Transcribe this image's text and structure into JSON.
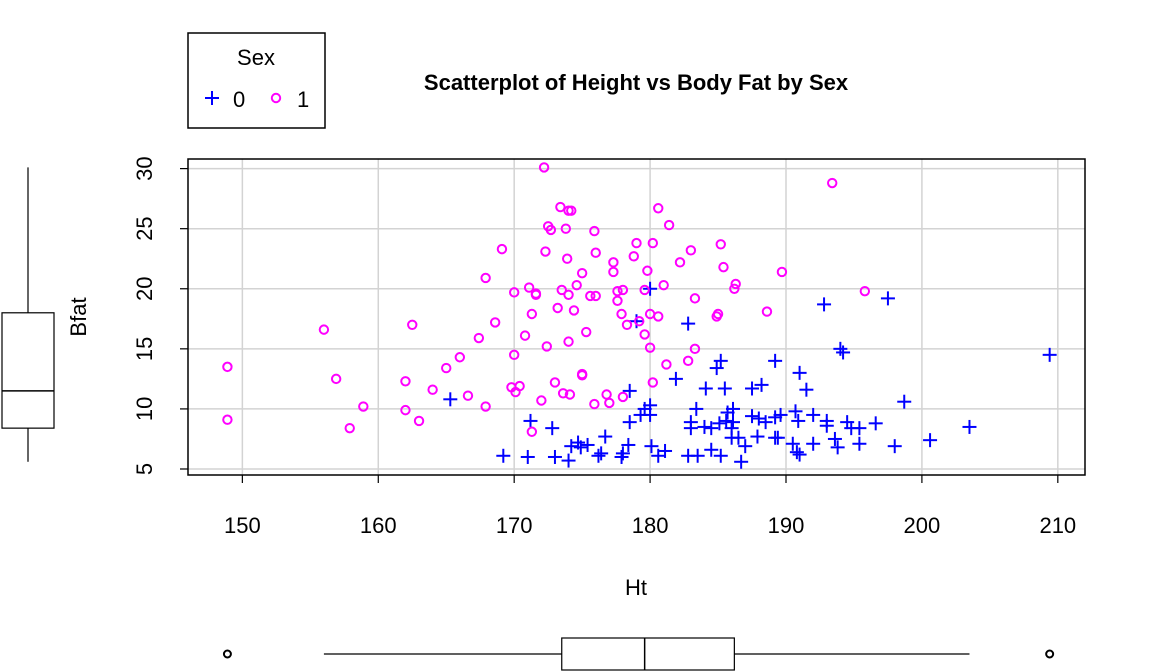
{
  "chart_data": {
    "type": "scatter",
    "title": "Scatterplot of Height vs Body Fat by Sex",
    "xlabel": "Ht",
    "ylabel": "Bfat",
    "xlim": [
      146,
      212
    ],
    "ylim": [
      4.5,
      30.8
    ],
    "x_ticks": [
      150,
      160,
      170,
      180,
      190,
      200,
      210
    ],
    "y_ticks": [
      5,
      10,
      15,
      20,
      25,
      30
    ],
    "grid": true,
    "legend": {
      "title": "Sex",
      "position": "top-left, outside plot"
    },
    "colors": {
      "0": "#0000ff",
      "1": "#ff00ff",
      "grid": "#d3d3d3"
    },
    "series": [
      {
        "name": "0",
        "marker": "plus",
        "points": [
          [
            165.3,
            10.8
          ],
          [
            169.2,
            6.1
          ],
          [
            171.2,
            9.0
          ],
          [
            171.0,
            6.0
          ],
          [
            172.8,
            8.4
          ],
          [
            173.0,
            6.0
          ],
          [
            174.0,
            5.7
          ],
          [
            174.2,
            6.9
          ],
          [
            174.7,
            7.2
          ],
          [
            174.9,
            6.8
          ],
          [
            175.4,
            7.0
          ],
          [
            176.2,
            6.1
          ],
          [
            176.4,
            6.3
          ],
          [
            176.7,
            7.7
          ],
          [
            177.9,
            6.0
          ],
          [
            178.0,
            6.3
          ],
          [
            178.4,
            7.0
          ],
          [
            178.5,
            8.9
          ],
          [
            178.5,
            11.5
          ],
          [
            179.0,
            17.3
          ],
          [
            179.3,
            9.5
          ],
          [
            179.6,
            10.0
          ],
          [
            180.0,
            9.5
          ],
          [
            180.0,
            10.3
          ],
          [
            180.0,
            20.0
          ],
          [
            180.6,
            6.1
          ],
          [
            181.1,
            6.5
          ],
          [
            180.1,
            6.9
          ],
          [
            181.9,
            12.5
          ],
          [
            182.8,
            17.1
          ],
          [
            182.8,
            6.1
          ],
          [
            183.0,
            8.9
          ],
          [
            183.5,
            6.1
          ],
          [
            183.0,
            8.4
          ],
          [
            183.4,
            10.0
          ],
          [
            184.1,
            11.7
          ],
          [
            184.0,
            8.5
          ],
          [
            184.5,
            8.4
          ],
          [
            184.5,
            6.6
          ],
          [
            184.9,
            13.4
          ],
          [
            185.2,
            14.0
          ],
          [
            185.1,
            8.8
          ],
          [
            185.2,
            6.1
          ],
          [
            185.6,
            9.0
          ],
          [
            185.5,
            11.7
          ],
          [
            185.7,
            9.7
          ],
          [
            186.0,
            8.4
          ],
          [
            186.0,
            7.6
          ],
          [
            186.1,
            10.0
          ],
          [
            186.1,
            8.9
          ],
          [
            186.5,
            7.6
          ],
          [
            186.7,
            5.6
          ],
          [
            187.0,
            6.9
          ],
          [
            187.5,
            11.7
          ],
          [
            187.5,
            9.4
          ],
          [
            187.9,
            7.7
          ],
          [
            188.0,
            9.2
          ],
          [
            188.2,
            12.0
          ],
          [
            188.5,
            8.9
          ],
          [
            189.2,
            9.3
          ],
          [
            189.4,
            7.6
          ],
          [
            189.2,
            14.0
          ],
          [
            189.6,
            9.5
          ],
          [
            189.2,
            7.6
          ],
          [
            190.5,
            7.1
          ],
          [
            190.7,
            9.8
          ],
          [
            190.8,
            6.4
          ],
          [
            190.9,
            9.0
          ],
          [
            191.0,
            6.2
          ],
          [
            191.0,
            13.0
          ],
          [
            191.5,
            11.6
          ],
          [
            192.0,
            7.1
          ],
          [
            192.0,
            9.5
          ],
          [
            192.8,
            18.7
          ],
          [
            193.0,
            8.6
          ],
          [
            193.0,
            9.0
          ],
          [
            193.6,
            7.5
          ],
          [
            193.8,
            6.8
          ],
          [
            194.0,
            15.0
          ],
          [
            194.2,
            14.7
          ],
          [
            194.5,
            8.9
          ],
          [
            194.8,
            8.4
          ],
          [
            195.4,
            7.1
          ],
          [
            195.4,
            8.4
          ],
          [
            196.6,
            8.8
          ],
          [
            197.5,
            19.2
          ],
          [
            198.0,
            6.9
          ],
          [
            198.7,
            10.6
          ],
          [
            200.6,
            7.4
          ],
          [
            203.5,
            8.5
          ],
          [
            209.4,
            14.5
          ]
        ]
      },
      {
        "name": "1",
        "marker": "circle",
        "points": [
          [
            148.9,
            13.5
          ],
          [
            148.9,
            9.1
          ],
          [
            156.0,
            16.6
          ],
          [
            156.9,
            12.5
          ],
          [
            157.9,
            8.4
          ],
          [
            158.9,
            10.2
          ],
          [
            162.0,
            9.9
          ],
          [
            162.0,
            12.3
          ],
          [
            162.5,
            17.0
          ],
          [
            163.0,
            9.0
          ],
          [
            164.0,
            11.6
          ],
          [
            165.0,
            13.4
          ],
          [
            166.0,
            14.3
          ],
          [
            166.6,
            11.1
          ],
          [
            167.4,
            15.9
          ],
          [
            167.9,
            20.9
          ],
          [
            167.9,
            10.2
          ],
          [
            168.6,
            17.2
          ],
          [
            169.1,
            23.3
          ],
          [
            169.8,
            11.8
          ],
          [
            170.0,
            19.7
          ],
          [
            170.0,
            14.5
          ],
          [
            170.1,
            11.4
          ],
          [
            170.4,
            11.9
          ],
          [
            170.8,
            16.1
          ],
          [
            171.1,
            20.1
          ],
          [
            171.3,
            17.9
          ],
          [
            171.3,
            8.1
          ],
          [
            171.6,
            19.5
          ],
          [
            171.6,
            19.6
          ],
          [
            172.0,
            10.7
          ],
          [
            172.2,
            30.1
          ],
          [
            172.3,
            23.1
          ],
          [
            172.4,
            15.2
          ],
          [
            172.5,
            25.2
          ],
          [
            172.7,
            24.9
          ],
          [
            173.0,
            12.2
          ],
          [
            173.2,
            18.4
          ],
          [
            173.4,
            26.8
          ],
          [
            173.5,
            19.9
          ],
          [
            173.6,
            11.3
          ],
          [
            173.8,
            25.0
          ],
          [
            173.9,
            22.5
          ],
          [
            174.0,
            15.6
          ],
          [
            174.0,
            26.5
          ],
          [
            174.0,
            19.5
          ],
          [
            174.1,
            11.2
          ],
          [
            174.2,
            26.5
          ],
          [
            174.4,
            18.2
          ],
          [
            174.6,
            20.3
          ],
          [
            175.0,
            12.8
          ],
          [
            175.0,
            12.9
          ],
          [
            175.0,
            21.3
          ],
          [
            175.3,
            16.4
          ],
          [
            175.6,
            19.4
          ],
          [
            175.9,
            10.4
          ],
          [
            175.9,
            24.8
          ],
          [
            176.0,
            23.0
          ],
          [
            176.0,
            19.4
          ],
          [
            176.8,
            11.2
          ],
          [
            177.0,
            10.5
          ],
          [
            177.3,
            21.4
          ],
          [
            177.3,
            22.2
          ],
          [
            177.6,
            19.8
          ],
          [
            177.6,
            19.0
          ],
          [
            177.9,
            17.9
          ],
          [
            178.0,
            19.9
          ],
          [
            178.0,
            11.0
          ],
          [
            178.3,
            17.0
          ],
          [
            178.8,
            22.7
          ],
          [
            179.0,
            23.8
          ],
          [
            179.2,
            17.3
          ],
          [
            179.6,
            16.2
          ],
          [
            179.6,
            19.9
          ],
          [
            179.8,
            21.5
          ],
          [
            180.0,
            17.9
          ],
          [
            180.0,
            15.1
          ],
          [
            180.2,
            12.2
          ],
          [
            180.2,
            23.8
          ],
          [
            180.6,
            26.7
          ],
          [
            180.6,
            17.7
          ],
          [
            181.0,
            20.3
          ],
          [
            181.2,
            13.7
          ],
          [
            181.4,
            25.3
          ],
          [
            182.2,
            22.2
          ],
          [
            182.8,
            14.0
          ],
          [
            183.0,
            23.2
          ],
          [
            183.3,
            19.2
          ],
          [
            183.3,
            15.0
          ],
          [
            184.9,
            17.7
          ],
          [
            185.0,
            17.9
          ],
          [
            185.2,
            23.7
          ],
          [
            185.4,
            21.8
          ],
          [
            186.2,
            20.0
          ],
          [
            186.3,
            20.4
          ],
          [
            188.6,
            18.1
          ],
          [
            189.7,
            21.4
          ],
          [
            193.4,
            28.8
          ],
          [
            195.8,
            19.8
          ]
        ]
      }
    ],
    "side_boxplot_y": {
      "axis": "Bfat",
      "whisker_low": 5.6,
      "q1": 8.4,
      "median": 11.5,
      "q3": 18.0,
      "whisker_high": 30.1
    },
    "bottom_boxplot_x": {
      "axis": "Ht",
      "whisker_low": 156.0,
      "q1": 173.5,
      "median": 179.6,
      "q3": 186.2,
      "whisker_high": 203.5,
      "outliers": [
        148.9,
        209.4
      ]
    }
  }
}
